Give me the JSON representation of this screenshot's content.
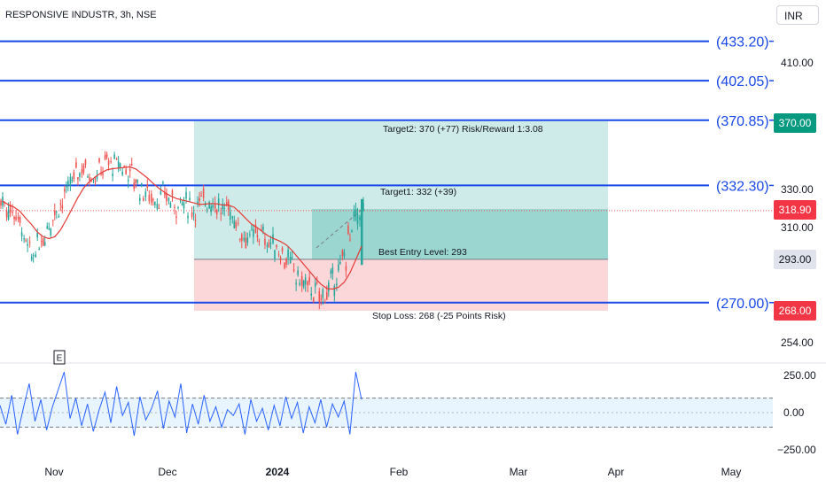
{
  "header": {
    "symbol_title": "RESPONSIVE INDUSTR, 3h, NSE",
    "currency": "INR"
  },
  "colors": {
    "up": "#26a69a",
    "down": "#ef5350",
    "level_line": "#1848e8",
    "ma": "#e53935",
    "profit_zone": "rgba(38,166,154,0.22)",
    "profit_zone_inner": "rgba(38,166,154,0.30)",
    "loss_zone": "rgba(242,54,69,0.20)",
    "oscillator": "#2962ff",
    "last_price_badge": "#f23645",
    "target_badge": "#089981",
    "neutral_badge": "#e0e3eb"
  },
  "chart_data": {
    "type": "candlestick",
    "x_axis_labels": [
      "Nov",
      "Dec",
      "2024",
      "Feb",
      "Mar",
      "Apr",
      "May"
    ],
    "y_axis_ticks": [
      "410.00",
      "330.00",
      "310.00",
      "254.00"
    ],
    "price_scale_badges": [
      {
        "label": "370.00",
        "kind": "target"
      },
      {
        "label": "318.90",
        "kind": "last"
      },
      {
        "label": "293.00",
        "kind": "neutral"
      },
      {
        "label": "268.00",
        "kind": "last"
      }
    ],
    "horizontal_levels": [
      {
        "price": 433.2,
        "label": "(433.20)"
      },
      {
        "price": 402.05,
        "label": "(402.05)"
      },
      {
        "price": 370.85,
        "label": "(370.85)"
      },
      {
        "price": 332.3,
        "label": "(332.30)"
      },
      {
        "price": 270.0,
        "label": "(270.00)"
      }
    ],
    "last_price": 318.9,
    "trade_setup": {
      "entry": 293,
      "stop": 268,
      "target1": 332,
      "target2": 370,
      "annotations": [
        {
          "id": "target2",
          "text": "Target2: 370 (+77) Risk/Reward 1:3.08"
        },
        {
          "id": "target1",
          "text": "Target1: 332 (+39)"
        },
        {
          "id": "entry",
          "text": "Best Entry Level: 293"
        },
        {
          "id": "stop",
          "text": "Stop Loss: 268 (-25 Points Risk)"
        }
      ]
    },
    "closes": [
      324,
      320,
      318,
      312,
      300,
      295,
      300,
      305,
      312,
      318,
      322,
      328,
      335,
      340,
      343,
      340,
      338,
      342,
      346,
      344,
      345,
      342,
      340,
      335,
      330,
      328,
      326,
      325,
      327,
      324,
      322,
      323,
      322,
      320,
      322,
      325,
      324,
      322,
      318,
      320,
      315,
      308,
      305,
      304,
      307,
      305,
      302,
      300,
      297,
      293,
      289,
      283,
      280,
      278,
      275,
      273,
      276,
      281,
      286,
      294,
      305,
      315,
      319
    ],
    "events": [
      {
        "label": "E"
      }
    ],
    "oscillator": {
      "ticks": [
        "250.00",
        "0.00",
        "−250.00"
      ],
      "values": [
        50,
        -80,
        120,
        -150,
        30,
        200,
        -60,
        90,
        -120,
        40,
        160,
        280,
        -40,
        100,
        -90,
        60,
        -130,
        20,
        140,
        -70,
        180,
        -20,
        70,
        -160,
        110,
        -50,
        30,
        150,
        -110,
        80,
        -30,
        200,
        -140,
        60,
        -80,
        120,
        -60,
        40,
        -100,
        20,
        -20,
        60,
        -150,
        90,
        -60,
        30,
        -120,
        50,
        -90,
        110,
        -40,
        70,
        -140,
        40,
        -70,
        90,
        -100,
        60,
        -30,
        80,
        -150,
        280,
        90
      ],
      "dashed_levels": [
        100,
        -100
      ]
    }
  }
}
